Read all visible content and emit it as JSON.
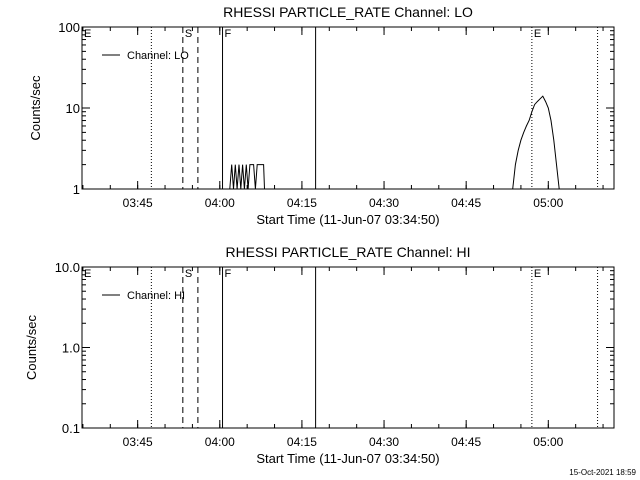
{
  "footer_timestamp": "15-Oct-2021 18:59",
  "chart_data": [
    {
      "type": "line",
      "title": "RHESSI PARTICLE_RATE Channel: LO",
      "xlabel": "Start Time (11-Jun-07 03:34:50)",
      "ylabel": "Counts/sec",
      "yscale": "log",
      "xlim": [
        "03:34:50",
        "05:12:00"
      ],
      "ylim": [
        1,
        100
      ],
      "xticks": [
        "03:45",
        "04:00",
        "04:15",
        "04:30",
        "04:45",
        "05:00"
      ],
      "yticks": [
        "1",
        "10",
        "100"
      ],
      "legend": "Channel: LO",
      "legend_position": "upper-left",
      "markers": [
        {
          "label": "E",
          "time": "03:34:50",
          "style": "dotted"
        },
        {
          "label": "",
          "time": "03:47:30",
          "style": "dotted"
        },
        {
          "label": "S",
          "time": "03:53:15",
          "style": "dashed"
        },
        {
          "label": "",
          "time": "03:56:00",
          "style": "dashed"
        },
        {
          "label": "F",
          "time": "04:00:30",
          "style": "solid"
        },
        {
          "label": "",
          "time": "04:17:30",
          "style": "solid"
        },
        {
          "label": "E",
          "time": "04:57:00",
          "style": "dotted"
        },
        {
          "label": "",
          "time": "05:09:00",
          "style": "dotted"
        }
      ],
      "series": [
        {
          "name": "Channel: LO",
          "points": [
            [
              "04:01:50",
              1
            ],
            [
              "04:02:10",
              2
            ],
            [
              "04:02:30",
              1
            ],
            [
              "04:02:50",
              2
            ],
            [
              "04:03:10",
              1
            ],
            [
              "04:03:30",
              2
            ],
            [
              "04:03:50",
              1
            ],
            [
              "04:04:10",
              2
            ],
            [
              "04:04:30",
              1
            ],
            [
              "04:04:50",
              2
            ],
            [
              "04:05:10",
              1
            ],
            [
              "04:05:30",
              2
            ],
            [
              "04:06:10",
              2
            ],
            [
              "04:06:30",
              1
            ],
            [
              "04:06:50",
              2
            ],
            [
              "04:07:30",
              2
            ],
            [
              "04:08:00",
              2
            ],
            [
              "04:08:10",
              1
            ],
            [
              "04:53:30",
              1
            ],
            [
              "04:54:00",
              2
            ],
            [
              "04:54:30",
              3
            ],
            [
              "04:55:00",
              4
            ],
            [
              "04:55:30",
              5
            ],
            [
              "04:56:00",
              6
            ],
            [
              "04:56:30",
              7
            ],
            [
              "04:57:00",
              9
            ],
            [
              "04:57:30",
              11
            ],
            [
              "04:58:00",
              12
            ],
            [
              "04:58:30",
              13
            ],
            [
              "04:59:00",
              14
            ],
            [
              "04:59:30",
              12
            ],
            [
              "05:00:00",
              10
            ],
            [
              "05:00:30",
              7
            ],
            [
              "05:01:00",
              4
            ],
            [
              "05:01:30",
              2
            ],
            [
              "05:02:00",
              1
            ]
          ]
        }
      ]
    },
    {
      "type": "line",
      "title": "RHESSI PARTICLE_RATE Channel: HI",
      "xlabel": "Start Time (11-Jun-07 03:34:50)",
      "ylabel": "Counts/sec",
      "yscale": "log",
      "xlim": [
        "03:34:50",
        "05:12:00"
      ],
      "ylim": [
        0.1,
        10
      ],
      "xticks": [
        "03:45",
        "04:00",
        "04:15",
        "04:30",
        "04:45",
        "05:00"
      ],
      "yticks": [
        "0.1",
        "1.0",
        "10.0"
      ],
      "legend": "Channel: HI",
      "legend_position": "upper-left",
      "markers": [
        {
          "label": "E",
          "time": "03:34:50",
          "style": "dotted"
        },
        {
          "label": "",
          "time": "03:47:30",
          "style": "dotted"
        },
        {
          "label": "S",
          "time": "03:53:15",
          "style": "dashed"
        },
        {
          "label": "",
          "time": "03:56:00",
          "style": "dashed"
        },
        {
          "label": "F",
          "time": "04:00:30",
          "style": "solid"
        },
        {
          "label": "",
          "time": "04:17:30",
          "style": "solid"
        },
        {
          "label": "E",
          "time": "04:57:00",
          "style": "dotted"
        },
        {
          "label": "",
          "time": "05:09:00",
          "style": "dotted"
        }
      ],
      "series": [
        {
          "name": "Channel: HI",
          "points": []
        }
      ]
    }
  ]
}
